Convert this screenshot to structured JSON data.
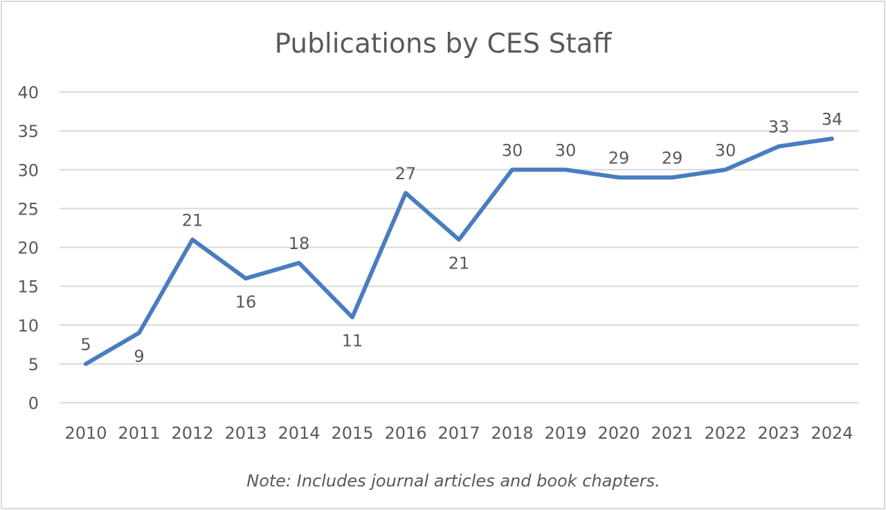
{
  "chart_data": {
    "type": "line",
    "title": "Publications by CES Staff",
    "note": "Note: Includes journal articles and book chapters.",
    "categories": [
      "2010",
      "2011",
      "2012",
      "2013",
      "2014",
      "2015",
      "2016",
      "2017",
      "2018",
      "2019",
      "2020",
      "2021",
      "2022",
      "2023",
      "2024"
    ],
    "series": [
      {
        "values": [
          5,
          9,
          21,
          16,
          18,
          11,
          27,
          21,
          30,
          30,
          29,
          29,
          30,
          33,
          34
        ],
        "color": "#4a7dbf"
      }
    ],
    "data_labels": true,
    "ylim": [
      0,
      40
    ],
    "yticks": [
      0,
      5,
      10,
      15,
      20,
      25,
      30,
      35,
      40
    ],
    "grid": true,
    "gridline_color": "#d9d9d9",
    "legend": "none"
  }
}
